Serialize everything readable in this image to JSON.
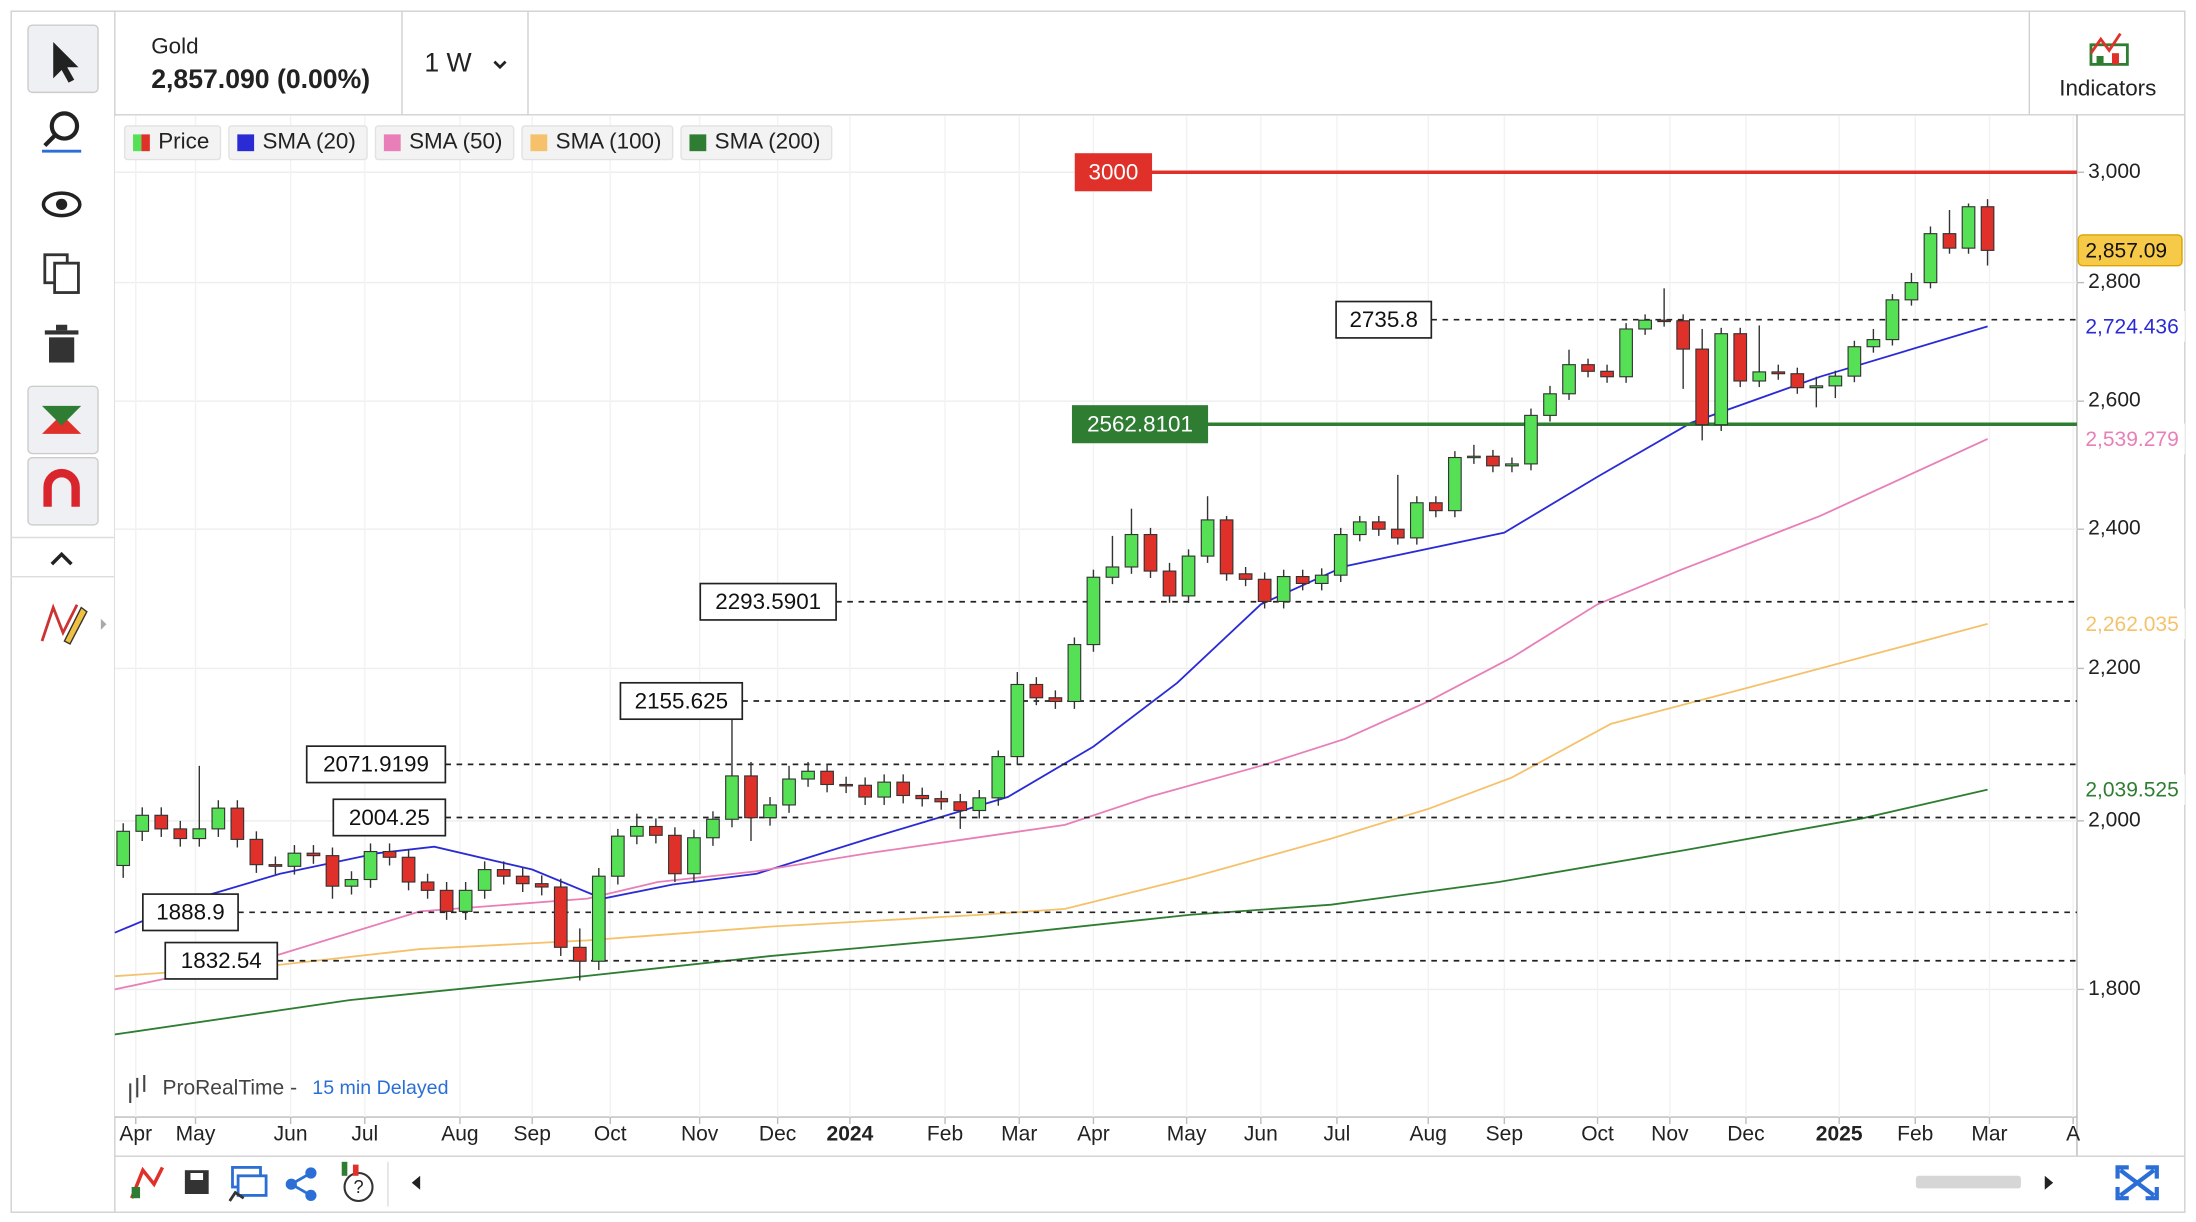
{
  "ui": {
    "instrument": "Gold",
    "price": "2,857.090 (0.00%)",
    "timeframe": "1 W",
    "indicators": "Indicators",
    "watermark": "ProRealTime -",
    "delay": "15 min Delayed"
  },
  "chart_data": {
    "type": "candlestick",
    "log_scale": true,
    "grid": true,
    "xlim": [
      -0.44,
      102.7
    ],
    "ylim": [
      1662,
      3107
    ],
    "yticks": [
      {
        "value": 1800,
        "label": "1,800"
      },
      {
        "value": 2000,
        "label": "2,000"
      },
      {
        "value": 2200,
        "label": "2,200"
      },
      {
        "value": 2400,
        "label": "2,400"
      },
      {
        "value": 2600,
        "label": "2,600"
      },
      {
        "value": 2800,
        "label": "2,800"
      },
      {
        "value": 3000,
        "label": "3,000"
      }
    ],
    "xticks": [
      {
        "value": 0.66,
        "label": "Apr"
      },
      {
        "value": 3.8,
        "label": "May"
      },
      {
        "value": 8.8,
        "label": "Jun"
      },
      {
        "value": 12.7,
        "label": "Jul"
      },
      {
        "value": 17.7,
        "label": "Aug"
      },
      {
        "value": 21.5,
        "label": "Sep"
      },
      {
        "value": 25.6,
        "label": "Oct"
      },
      {
        "value": 30.3,
        "label": "Nov"
      },
      {
        "value": 34.4,
        "label": "Dec"
      },
      {
        "value": 38.2,
        "label": "2024"
      },
      {
        "value": 43.2,
        "label": "Feb"
      },
      {
        "value": 47.1,
        "label": "Mar"
      },
      {
        "value": 51,
        "label": "Apr"
      },
      {
        "value": 55.9,
        "label": "May"
      },
      {
        "value": 59.8,
        "label": "Jun"
      },
      {
        "value": 63.8,
        "label": "Jul"
      },
      {
        "value": 68.6,
        "label": "Aug"
      },
      {
        "value": 72.6,
        "label": "Sep"
      },
      {
        "value": 77.5,
        "label": "Oct"
      },
      {
        "value": 81.3,
        "label": "Nov"
      },
      {
        "value": 85.3,
        "label": "Dec"
      },
      {
        "value": 90.2,
        "label": "2025"
      },
      {
        "value": 94.2,
        "label": "Feb"
      },
      {
        "value": 98.1,
        "label": "Mar"
      },
      {
        "value": 102.5,
        "label": "A"
      }
    ],
    "price": {
      "name": "Price",
      "up_color": "#55e055",
      "down_color": "#e0302a",
      "open": [
        1945,
        1987,
        2007,
        1990,
        1978,
        1990,
        2016,
        1977,
        1946,
        1944,
        1960,
        1957,
        1920,
        1928,
        1962,
        1955,
        1925,
        1915,
        1890,
        1915,
        1940,
        1932,
        1923,
        1919,
        1848,
        1832,
        1932,
        1981,
        1993,
        1982,
        1935,
        1979,
        2002,
        2057,
        2004,
        2020,
        2053,
        2063,
        2046,
        2045,
        2030,
        2049,
        2032,
        2028,
        2024,
        2013,
        2029,
        2082,
        2178,
        2160,
        2155,
        2233,
        2329,
        2344,
        2392,
        2338,
        2302,
        2360,
        2414,
        2334,
        2326,
        2294,
        2330,
        2320,
        2332,
        2392,
        2411,
        2400,
        2387,
        2440,
        2428,
        2510,
        2512,
        2497,
        2500,
        2577,
        2612,
        2660,
        2649,
        2640,
        2720,
        2735,
        2734,
        2686,
        2562,
        2712,
        2633,
        2648,
        2645,
        2622,
        2625,
        2641,
        2690,
        2702,
        2770,
        2800,
        2887,
        2861,
        2936
      ],
      "high": [
        1997,
        2017,
        2017,
        2000,
        2070,
        2026,
        2026,
        1987,
        1956,
        1970,
        1970,
        1967,
        1938,
        1972,
        1972,
        1965,
        1935,
        1925,
        1925,
        1950,
        1950,
        1942,
        1933,
        1929,
        1870,
        1942,
        1990,
        2009,
        2003,
        1992,
        1989,
        2012,
        2146,
        2075,
        2030,
        2070,
        2075,
        2073,
        2056,
        2055,
        2059,
        2059,
        2042,
        2038,
        2034,
        2039,
        2090,
        2195,
        2188,
        2170,
        2243,
        2340,
        2390,
        2431,
        2402,
        2350,
        2370,
        2450,
        2420,
        2344,
        2336,
        2340,
        2340,
        2342,
        2402,
        2420,
        2420,
        2483,
        2450,
        2450,
        2520,
        2530,
        2522,
        2510,
        2588,
        2625,
        2685,
        2670,
        2660,
        2730,
        2745,
        2790,
        2745,
        2720,
        2722,
        2722,
        2726,
        2660,
        2655,
        2640,
        2650,
        2700,
        2720,
        2780,
        2817,
        2900,
        2930,
        2942,
        2950
      ],
      "low": [
        1930,
        1975,
        1980,
        1968,
        1968,
        1980,
        1967,
        1936,
        1934,
        1934,
        1947,
        1905,
        1910,
        1918,
        1945,
        1915,
        1905,
        1880,
        1880,
        1905,
        1922,
        1913,
        1909,
        1838,
        1810,
        1822,
        1922,
        1971,
        1972,
        1925,
        1925,
        1969,
        1992,
        1975,
        1994,
        2010,
        2043,
        2036,
        2035,
        2020,
        2020,
        2022,
        2018,
        2014,
        1990,
        2003,
        2019,
        2072,
        2150,
        2145,
        2145,
        2223,
        2319,
        2334,
        2328,
        2292,
        2292,
        2350,
        2324,
        2316,
        2284,
        2284,
        2310,
        2310,
        2322,
        2382,
        2390,
        2377,
        2377,
        2418,
        2418,
        2500,
        2487,
        2487,
        2490,
        2567,
        2602,
        2639,
        2630,
        2630,
        2710,
        2724,
        2620,
        2537,
        2552,
        2623,
        2623,
        2635,
        2612,
        2590,
        2605,
        2631,
        2680,
        2692,
        2760,
        2790,
        2851,
        2851,
        2830
      ],
      "close": [
        1987,
        2007,
        1990,
        1978,
        1990,
        2016,
        1977,
        1946,
        1944,
        1960,
        1957,
        1920,
        1928,
        1962,
        1955,
        1925,
        1915,
        1890,
        1915,
        1940,
        1932,
        1923,
        1919,
        1848,
        1832,
        1932,
        1981,
        1993,
        1982,
        1935,
        1979,
        2002,
        2057,
        2004,
        2020,
        2053,
        2063,
        2046,
        2045,
        2030,
        2049,
        2032,
        2028,
        2024,
        2013,
        2029,
        2082,
        2178,
        2160,
        2155,
        2233,
        2329,
        2344,
        2392,
        2338,
        2302,
        2360,
        2414,
        2334,
        2326,
        2294,
        2330,
        2320,
        2332,
        2392,
        2411,
        2400,
        2387,
        2440,
        2428,
        2510,
        2512,
        2497,
        2500,
        2577,
        2612,
        2660,
        2649,
        2640,
        2720,
        2735,
        2734,
        2686,
        2562,
        2712,
        2633,
        2648,
        2645,
        2622,
        2625,
        2641,
        2690,
        2702,
        2770,
        2800,
        2887,
        2861,
        2936,
        2857
      ],
      "last": {
        "value": 2857.09,
        "label": "2,857.09"
      }
    },
    "series": [
      {
        "name": "SMA (20)",
        "color": "#2b2bd6",
        "x": [
          -0.44,
          3.83,
          8.25,
          13.4,
          16.35,
          21.5,
          25.2,
          28.9,
          33.3,
          39.2,
          46.5,
          51,
          55.4,
          59.8,
          64.2,
          72.6,
          77.5,
          82.4,
          89.2,
          98
        ],
        "values": [
          1865,
          1905,
          1935,
          1960,
          1968,
          1940,
          1905,
          1922,
          1935,
          1978,
          2030,
          2095,
          2180,
          2290,
          2345,
          2395,
          2480,
          2565,
          2640,
          2724.436
        ],
        "end_label": "2,724.436"
      },
      {
        "name": "SMA (50)",
        "color": "#e87fb8",
        "x": [
          -0.44,
          8.25,
          15.6,
          24.4,
          28.1,
          33.3,
          39.2,
          45.1,
          49.5,
          53.9,
          59.8,
          64.2,
          68.6,
          73,
          77.5,
          81.9,
          89.2,
          98
        ],
        "values": [
          1800,
          1840,
          1890,
          1905,
          1925,
          1938,
          1960,
          1980,
          1995,
          2030,
          2070,
          2105,
          2155,
          2215,
          2290,
          2340,
          2420,
          2539.279
        ],
        "end_label": "2,539.279"
      },
      {
        "name": "SMA (100)",
        "color": "#f5c26b",
        "x": [
          -0.44,
          8.25,
          15.6,
          24.4,
          34,
          45.1,
          49.5,
          56.1,
          63.5,
          68.6,
          73,
          78.2,
          85.6,
          98
        ],
        "values": [
          1815,
          1828,
          1846,
          1856,
          1872,
          1886,
          1893,
          1930,
          1978,
          2015,
          2055,
          2125,
          2175,
          2262.035
        ],
        "end_label": "2,262.035"
      },
      {
        "name": "SMA (200)",
        "color": "#2e7d32",
        "x": [
          -0.44,
          11.9,
          23,
          34,
          45.1,
          56.1,
          63.5,
          72.3,
          81.9,
          91.4,
          98
        ],
        "values": [
          1750,
          1788,
          1812,
          1838,
          1860,
          1886,
          1898,
          1925,
          1963,
          2003,
          2039.525
        ],
        "end_label": "2,039.525"
      }
    ],
    "levels": [
      {
        "value": 3000,
        "color": "#e0302a",
        "style": "solid"
      },
      {
        "value": 2562.8101,
        "color": "#2e7d32",
        "style": "solid"
      },
      {
        "value": 2735.8,
        "color": "#222222",
        "style": "dashed"
      },
      {
        "value": 2293.5901,
        "color": "#222222",
        "style": "dashed"
      },
      {
        "value": 2155.625,
        "color": "#222222",
        "style": "dashed"
      },
      {
        "value": 2071.9199,
        "color": "#222222",
        "style": "dashed"
      },
      {
        "value": 2004.25,
        "color": "#222222",
        "style": "dashed"
      },
      {
        "value": 1888.9,
        "color": "#222222",
        "style": "dashed"
      },
      {
        "value": 1832.54,
        "color": "#222222",
        "style": "dashed"
      }
    ]
  }
}
